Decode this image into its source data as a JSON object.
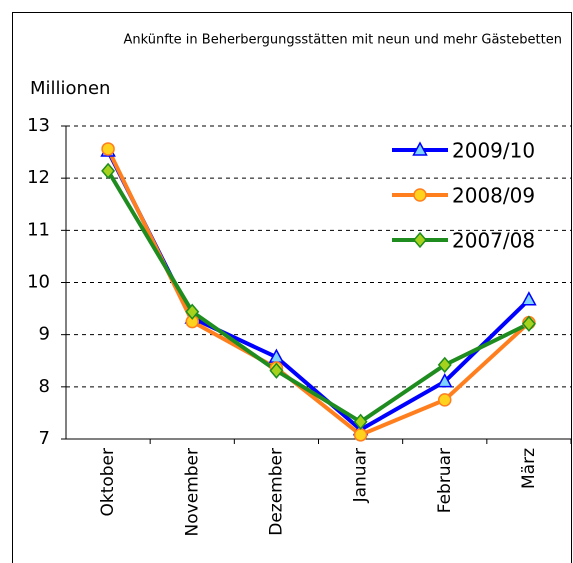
{
  "chart_data": {
    "type": "line",
    "title": "Ankünfte in Beherbergungsstätten mit neun und mehr Gästebetten",
    "y_label": "Millionen",
    "categories": [
      "Oktober",
      "November",
      "Dezember",
      "Januar",
      "Februar",
      "März"
    ],
    "series": [
      {
        "name": "2009/10",
        "color": "#0000ff",
        "marker": "triangle",
        "marker_color": "#7fd4ff",
        "values": [
          12.52,
          9.32,
          8.57,
          7.18,
          8.1,
          9.67
        ]
      },
      {
        "name": "2008/09",
        "color": "#ff7f1e",
        "marker": "circle",
        "marker_color": "#ffd21e",
        "values": [
          12.56,
          9.25,
          8.36,
          7.08,
          7.75,
          9.23
        ]
      },
      {
        "name": "2007/08",
        "color": "#1e8c1e",
        "marker": "diamond",
        "marker_color": "#a6d21e",
        "values": [
          12.14,
          9.44,
          8.31,
          7.33,
          8.42,
          9.21
        ]
      }
    ],
    "ylim": [
      7,
      13
    ],
    "yticks": [
      7,
      8,
      9,
      10,
      11,
      12,
      13
    ],
    "grid": true,
    "legend": "upper right"
  }
}
